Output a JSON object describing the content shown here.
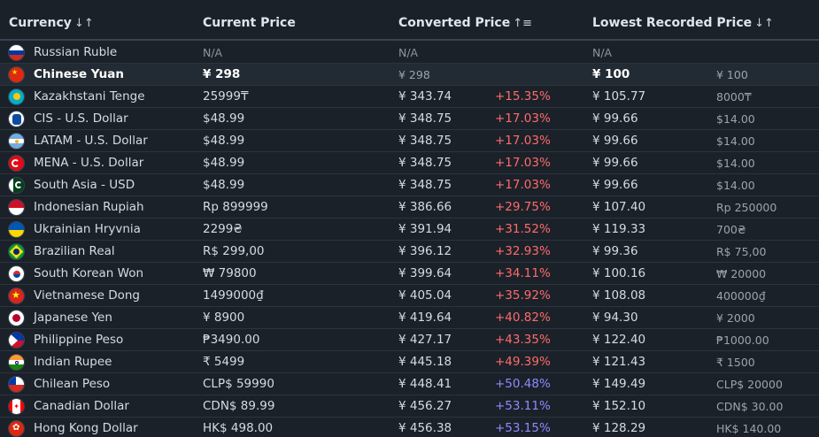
{
  "header": {
    "currency": "Currency",
    "current_price": "Current Price",
    "converted_price": "Converted Price",
    "lowest_price": "Lowest Recorded Price",
    "sort_both": "↓↑",
    "sort_asc": "↑≡"
  },
  "rows": [
    {
      "name": "Russian Ruble",
      "flag": "ru",
      "price": "N/A",
      "conv": "N/A",
      "pct": "",
      "low": "N/A",
      "lowo": "",
      "na": true
    },
    {
      "name": "Chinese Yuan",
      "flag": "cn",
      "price": "¥ 298",
      "conv": "¥ 298",
      "pct": "",
      "low": "¥ 100",
      "lowo": "¥ 100",
      "highlight": true
    },
    {
      "name": "Kazakhstani Tenge",
      "flag": "kz",
      "price": "25999₸",
      "conv": "¥ 343.74",
      "pct": "+15.35%",
      "low": "¥ 105.77",
      "lowo": "8000₸",
      "pct_color": "red"
    },
    {
      "name": "CIS - U.S. Dollar",
      "flag": "cis",
      "price": "$48.99",
      "conv": "¥ 348.75",
      "pct": "+17.03%",
      "low": "¥ 99.66",
      "lowo": "$14.00",
      "pct_color": "red"
    },
    {
      "name": "LATAM - U.S. Dollar",
      "flag": "ar",
      "price": "$48.99",
      "conv": "¥ 348.75",
      "pct": "+17.03%",
      "low": "¥ 99.66",
      "lowo": "$14.00",
      "pct_color": "red"
    },
    {
      "name": "MENA - U.S. Dollar",
      "flag": "tr",
      "price": "$48.99",
      "conv": "¥ 348.75",
      "pct": "+17.03%",
      "low": "¥ 99.66",
      "lowo": "$14.00",
      "pct_color": "red"
    },
    {
      "name": "South Asia - USD",
      "flag": "pk",
      "price": "$48.99",
      "conv": "¥ 348.75",
      "pct": "+17.03%",
      "low": "¥ 99.66",
      "lowo": "$14.00",
      "pct_color": "red"
    },
    {
      "name": "Indonesian Rupiah",
      "flag": "id",
      "price": "Rp 899999",
      "conv": "¥ 386.66",
      "pct": "+29.75%",
      "low": "¥ 107.40",
      "lowo": "Rp 250000",
      "pct_color": "red"
    },
    {
      "name": "Ukrainian Hryvnia",
      "flag": "ua",
      "price": "2299₴",
      "conv": "¥ 391.94",
      "pct": "+31.52%",
      "low": "¥ 119.33",
      "lowo": "700₴",
      "pct_color": "red"
    },
    {
      "name": "Brazilian Real",
      "flag": "br",
      "price": "R$ 299,00",
      "conv": "¥ 396.12",
      "pct": "+32.93%",
      "low": "¥ 99.36",
      "lowo": "R$ 75,00",
      "pct_color": "red"
    },
    {
      "name": "South Korean Won",
      "flag": "kr",
      "price": "₩ 79800",
      "conv": "¥ 399.64",
      "pct": "+34.11%",
      "low": "¥ 100.16",
      "lowo": "₩ 20000",
      "pct_color": "red"
    },
    {
      "name": "Vietnamese Dong",
      "flag": "vn",
      "price": "1499000₫",
      "conv": "¥ 405.04",
      "pct": "+35.92%",
      "low": "¥ 108.08",
      "lowo": "400000₫",
      "pct_color": "red"
    },
    {
      "name": "Japanese Yen",
      "flag": "jp",
      "price": "¥ 8900",
      "conv": "¥ 419.64",
      "pct": "+40.82%",
      "low": "¥ 94.30",
      "lowo": "¥ 2000",
      "pct_color": "red"
    },
    {
      "name": "Philippine Peso",
      "flag": "ph",
      "price": "₱3490.00",
      "conv": "¥ 427.17",
      "pct": "+43.35%",
      "low": "¥ 122.40",
      "lowo": "₱1000.00",
      "pct_color": "red"
    },
    {
      "name": "Indian Rupee",
      "flag": "in",
      "price": "₹ 5499",
      "conv": "¥ 445.18",
      "pct": "+49.39%",
      "low": "¥ 121.43",
      "lowo": "₹ 1500",
      "pct_color": "red"
    },
    {
      "name": "Chilean Peso",
      "flag": "cl",
      "price": "CLP$ 59990",
      "conv": "¥ 448.41",
      "pct": "+50.48%",
      "low": "¥ 149.49",
      "lowo": "CLP$ 20000",
      "pct_color": "blue"
    },
    {
      "name": "Canadian Dollar",
      "flag": "ca",
      "price": "CDN$ 89.99",
      "conv": "¥ 456.27",
      "pct": "+53.11%",
      "low": "¥ 152.10",
      "lowo": "CDN$ 30.00",
      "pct_color": "blue"
    },
    {
      "name": "Hong Kong Dollar",
      "flag": "hk",
      "price": "HK$ 498.00",
      "conv": "¥ 456.38",
      "pct": "+53.15%",
      "low": "¥ 128.29",
      "lowo": "HK$ 140.00",
      "pct_color": "blue"
    }
  ]
}
